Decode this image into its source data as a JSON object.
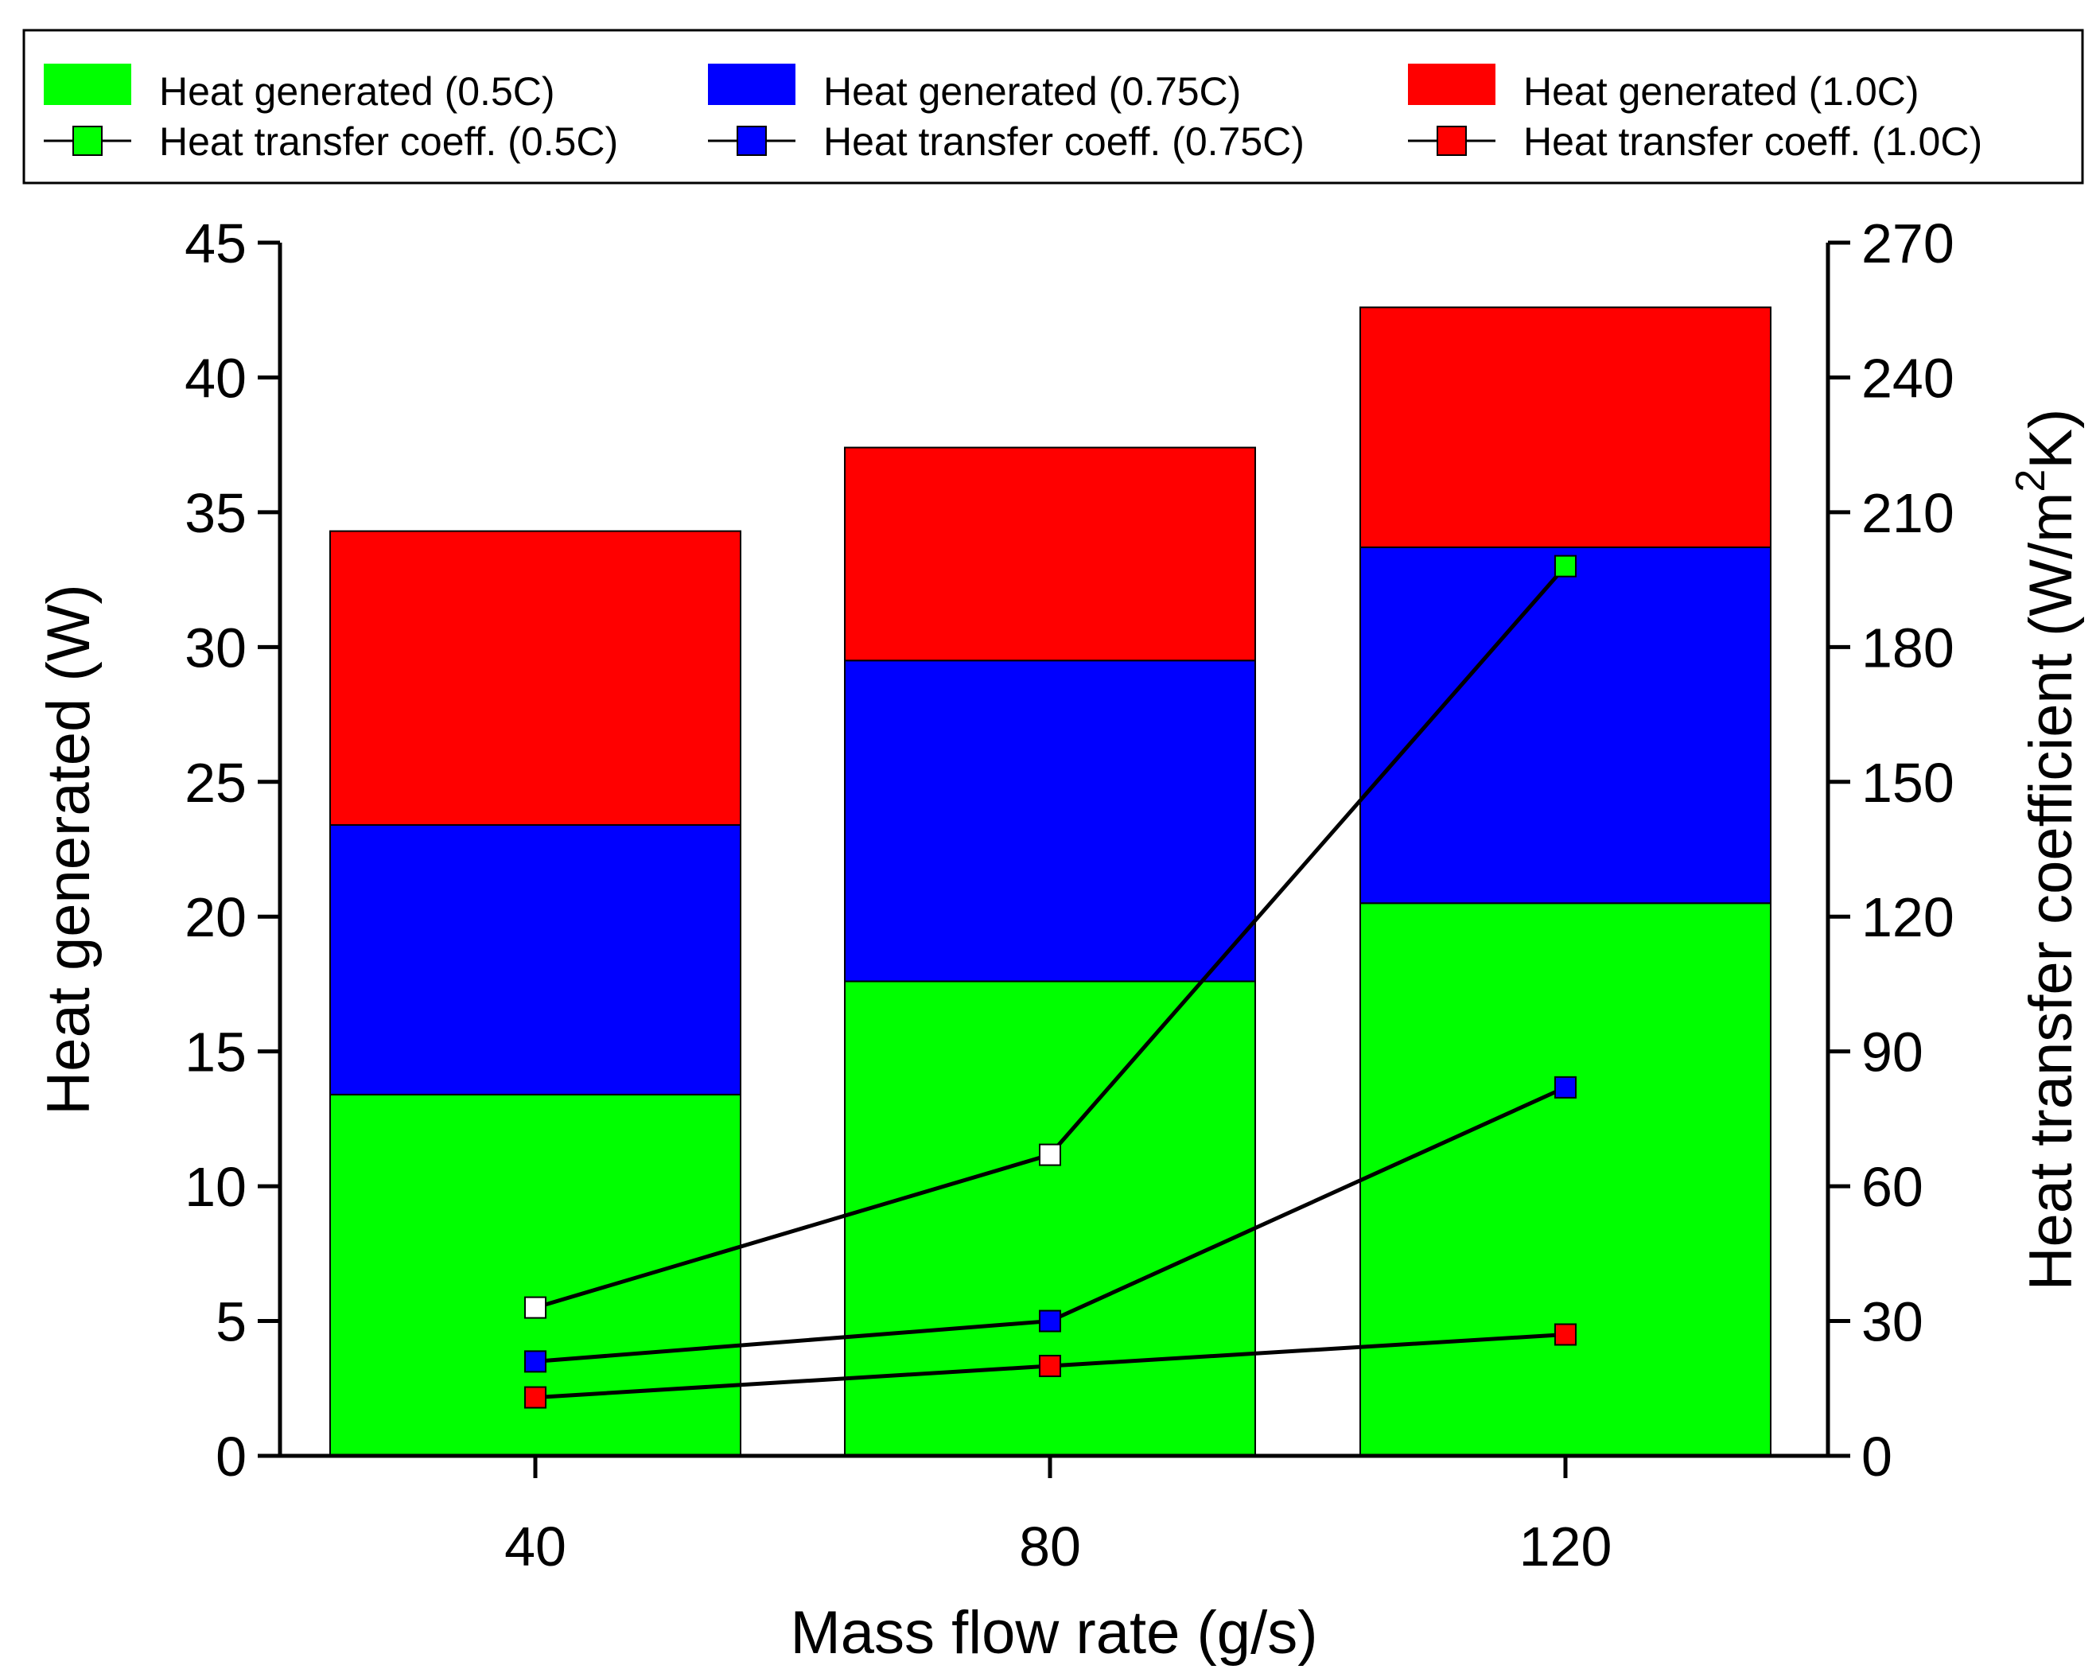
{
  "chart_data": {
    "type": "bar",
    "subtype": "stacked-bar-with-dual-axis-lines",
    "categories": [
      "40",
      "80",
      "120"
    ],
    "xlabel": "Mass flow rate (g/s)",
    "ylabel": "Heat generated (W)",
    "y2label_main": "Heat transfer coefficient (W/m",
    "y2label_sup": "2",
    "y2label_tail": "K)",
    "ylim": [
      0,
      45
    ],
    "y2lim": [
      0,
      270
    ],
    "yticks": [
      "0",
      "5",
      "10",
      "15",
      "20",
      "25",
      "30",
      "35",
      "40",
      "45"
    ],
    "y2ticks": [
      "0",
      "30",
      "60",
      "90",
      "120",
      "150",
      "180",
      "210",
      "240",
      "270"
    ],
    "bar_series": [
      {
        "name": "Heat generated (0.5C)",
        "color": "#00ff00",
        "values": [
          13.4,
          17.6,
          20.5
        ]
      },
      {
        "name": "Heat generated (0.75C)",
        "color": "#0000ff",
        "values": [
          10.0,
          11.9,
          13.2
        ]
      },
      {
        "name": "Heat generated (1.0C)",
        "color": "#ff0000",
        "values": [
          10.9,
          7.9,
          8.9
        ]
      }
    ],
    "line_series": [
      {
        "name": "Heat transfer coeff. (0.5C)",
        "color": "#00ff00",
        "values": [
          33,
          67,
          198
        ],
        "marker_fill": [
          "#ffffff",
          "#ffffff",
          "#00ff00"
        ]
      },
      {
        "name": "Heat transfer coeff. (0.75C)",
        "color": "#0000ff",
        "values": [
          21,
          30,
          82
        ]
      },
      {
        "name": "Heat transfer coeff. (1.0C)",
        "color": "#ff0000",
        "values": [
          13,
          20,
          27
        ]
      }
    ],
    "legend": {
      "placement": "top",
      "bar_entries": [
        "Heat generated (0.5C)",
        "Heat generated (0.75C)",
        "Heat generated (1.0C)"
      ],
      "line_entries": [
        "Heat transfer coeff. (0.5C)",
        "Heat transfer coeff. (0.75C)",
        "Heat transfer coeff. (1.0C)"
      ],
      "bar_colors": [
        "#00ff00",
        "#0000ff",
        "#ff0000"
      ]
    }
  }
}
